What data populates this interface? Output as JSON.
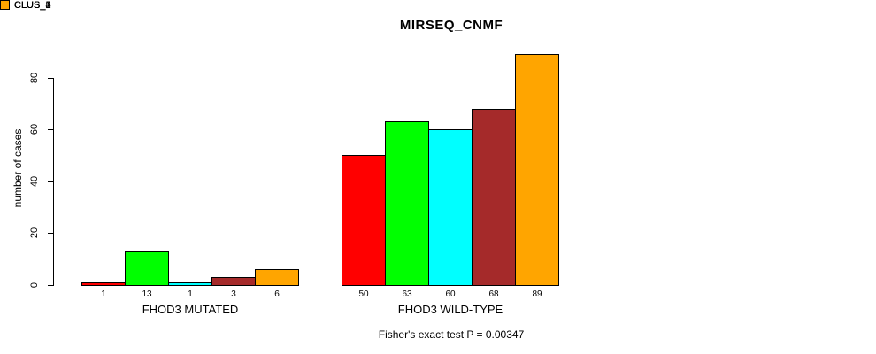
{
  "title": "MIRSEQ_CNMF",
  "y_axis_label": "number of cases",
  "footnote": "Fisher's exact test P = 0.00347",
  "chart_data": {
    "type": "bar",
    "title": "MIRSEQ_CNMF",
    "xlabel": "",
    "ylabel": "number of cases",
    "annotation": "Fisher's exact test P = 0.00347",
    "categories": [
      "FHOD3 MUTATED",
      "FHOD3 WILD-TYPE"
    ],
    "series": [
      {
        "name": "CLUS_1",
        "color": "#ff0000",
        "values": [
          1,
          50
        ]
      },
      {
        "name": "CLUS_2",
        "color": "#00ff00",
        "values": [
          13,
          63
        ]
      },
      {
        "name": "CLUS_3",
        "color": "#00ffff",
        "values": [
          1,
          60
        ]
      },
      {
        "name": "CLUS_4",
        "color": "#a52a2a",
        "values": [
          3,
          68
        ]
      },
      {
        "name": "CLUS_5",
        "color": "#ffa500",
        "values": [
          6,
          89
        ]
      }
    ],
    "yticks": [
      0,
      20,
      40,
      60,
      80
    ],
    "ylim": [
      0,
      89
    ],
    "bar_value_labels_shown": true,
    "bar_border_color": "#000000",
    "legend_position": "right",
    "grid": false
  }
}
